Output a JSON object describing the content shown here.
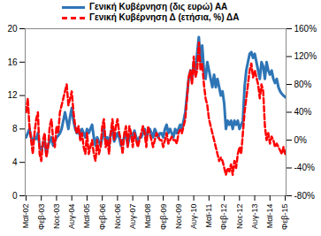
{
  "chart_data": {
    "type": "line",
    "categories": [
      "Μαϊ-02",
      null,
      null,
      null,
      null,
      null,
      null,
      null,
      null,
      "Φεβ-03",
      null,
      null,
      null,
      null,
      null,
      null,
      null,
      null,
      "Νοε-03",
      null,
      null,
      null,
      null,
      null,
      null,
      null,
      null,
      "Αυγ-04",
      null,
      null,
      null,
      null,
      null,
      null,
      null,
      null,
      "Μαϊ-05",
      null,
      null,
      null,
      null,
      null,
      null,
      null,
      null,
      "Φεβ-06",
      null,
      null,
      null,
      null,
      null,
      null,
      null,
      null,
      "Νοε-06",
      null,
      null,
      null,
      null,
      null,
      null,
      null,
      null,
      "Αυγ-07",
      null,
      null,
      null,
      null,
      null,
      null,
      null,
      null,
      "Μαϊ-08",
      null,
      null,
      null,
      null,
      null,
      null,
      null,
      null,
      "Φεβ-09",
      null,
      null,
      null,
      null,
      null,
      null,
      null,
      null,
      "Νοε-09",
      null,
      null,
      null,
      null,
      null,
      null,
      null,
      null,
      "Αυγ-10",
      null,
      null,
      null,
      null,
      null,
      null,
      null,
      null,
      "Μαϊ-11",
      null,
      null,
      null,
      null,
      null,
      null,
      null,
      null,
      "Φεβ-12",
      null,
      null,
      null,
      null,
      null,
      null,
      null,
      null,
      "Νοε-12",
      null,
      null,
      null,
      null,
      null,
      null,
      null,
      null,
      "Αυγ-13",
      null,
      null,
      null,
      null,
      null,
      null,
      null,
      null,
      "Μαϊ-14",
      null,
      null,
      null,
      null,
      null,
      null,
      null,
      null,
      "Φεβ-15"
    ],
    "series": [
      {
        "name": "Γενική Κυβέρνηση (δις ευρώ) ΑΑ",
        "color": "#2e75b6",
        "line_style": "solid",
        "values": [
          7,
          7.5,
          8,
          7,
          6.5,
          7,
          6.8,
          7.5,
          6,
          5.5,
          6,
          6.5,
          5,
          6,
          6.5,
          7,
          6,
          6.5,
          7,
          7.2,
          7.5,
          8,
          9,
          10,
          9,
          8,
          9.5,
          10.5,
          9,
          8,
          7.5,
          8,
          7,
          8,
          7.5,
          7,
          8,
          7.5,
          8,
          8.5,
          7,
          6,
          7,
          6.5,
          6,
          7,
          8,
          6.5,
          7,
          6,
          7.5,
          8,
          6.5,
          7,
          7.5,
          7,
          6,
          6.5,
          7,
          7.5,
          6,
          7,
          7.5,
          7,
          7.8,
          7,
          6.5,
          7,
          7,
          7.5,
          8,
          7,
          7.5,
          8,
          7.5,
          7,
          8,
          7.5,
          7,
          7.5,
          7.5,
          7,
          8,
          8.5,
          7.5,
          8,
          7.5,
          7,
          8,
          7.5,
          8,
          8.5,
          8,
          9,
          10,
          12,
          14,
          15,
          14,
          16,
          15,
          17,
          19,
          16,
          18,
          15,
          14,
          16,
          15,
          14,
          13,
          14.5,
          13,
          14,
          13,
          12,
          12.5,
          11,
          8,
          9,
          8.5,
          9,
          8,
          9,
          8.5,
          9,
          8,
          8.5,
          9,
          13,
          15,
          16,
          17,
          17.2,
          16.5,
          17,
          16,
          15,
          14,
          16,
          15.5,
          14,
          16,
          15,
          14.5,
          15,
          14,
          13.5,
          14,
          13,
          12.5,
          12.2,
          12,
          11.8
        ]
      },
      {
        "name": "Γενική Κυβέρνηση Δ (ετήσια, %) ΔΑ",
        "color": "#ff0000",
        "line_style": "dashed",
        "axis": "y2",
        "values": [
          40,
          60,
          20,
          0,
          -20,
          10,
          30,
          40,
          -20,
          -30,
          0,
          10,
          -25,
          -10,
          20,
          30,
          0,
          -10,
          20,
          10,
          40,
          50,
          60,
          70,
          80,
          50,
          60,
          70,
          40,
          20,
          10,
          20,
          0,
          10,
          -10,
          -20,
          10,
          -20,
          -10,
          0,
          -20,
          -30,
          0,
          -20,
          -10,
          20,
          30,
          -10,
          0,
          -20,
          10,
          30,
          0,
          20,
          30,
          10,
          0,
          -20,
          10,
          20,
          -10,
          20,
          10,
          -10,
          10,
          0,
          -10,
          0,
          10,
          20,
          10,
          -10,
          20,
          10,
          0,
          -10,
          0,
          10,
          5,
          0,
          0,
          -10,
          0,
          10,
          -5,
          0,
          5,
          0,
          0,
          -5,
          10,
          15,
          10,
          20,
          30,
          60,
          90,
          100,
          80,
          120,
          90,
          100,
          140,
          100,
          110,
          80,
          60,
          50,
          30,
          20,
          10,
          0,
          -10,
          -20,
          -30,
          -25,
          -30,
          -40,
          -50,
          -40,
          -45,
          -35,
          -50,
          -30,
          -40,
          -20,
          -10,
          -20,
          10,
          40,
          60,
          80,
          100,
          110,
          90,
          100,
          90,
          80,
          60,
          80,
          70,
          20,
          0,
          10,
          -5,
          5,
          0,
          -10,
          -5,
          -10,
          -15,
          -20,
          -10,
          -20
        ]
      }
    ],
    "ylim": [
      0,
      20
    ],
    "yticks": [
      0,
      4,
      8,
      12,
      16,
      20
    ],
    "y2lim": [
      -80,
      160
    ],
    "y2ticks": [
      {
        "value": -80,
        "label": "-80%"
      },
      {
        "value": -40,
        "label": "-40%"
      },
      {
        "value": 0,
        "label": "0%"
      },
      {
        "value": 40,
        "label": "40%"
      },
      {
        "value": 80,
        "label": "80%"
      },
      {
        "value": 120,
        "label": "120%"
      },
      {
        "value": 160,
        "label": "160%"
      }
    ],
    "grid": false,
    "legend": "top"
  }
}
